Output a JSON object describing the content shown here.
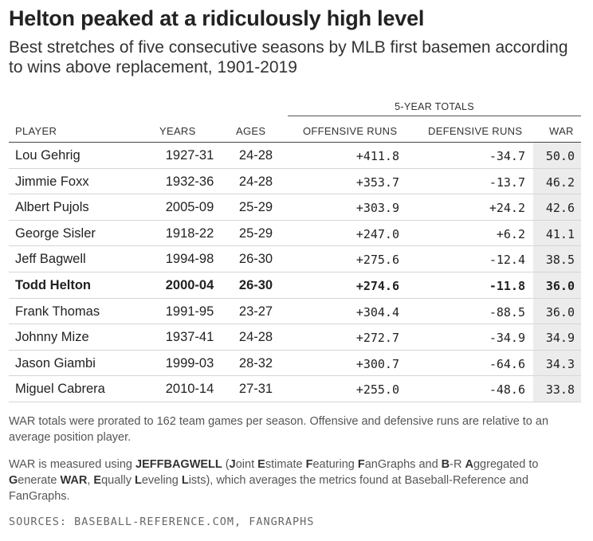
{
  "title": "Helton peaked at a ridiculously high level",
  "subtitle": "Best stretches of five consecutive seasons by MLB first basemen according to wins above replacement, 1901-2019",
  "table": {
    "group_header": "5-YEAR TOTALS",
    "columns": [
      "PLAYER",
      "YEARS",
      "AGES",
      "OFFENSIVE RUNS",
      "DEFENSIVE RUNS",
      "WAR"
    ],
    "rows": [
      {
        "player": "Lou Gehrig",
        "years": "1927-31",
        "ages": "24-28",
        "off": "+411.8",
        "def": "-34.7",
        "war": "50.0"
      },
      {
        "player": "Jimmie Foxx",
        "years": "1932-36",
        "ages": "24-28",
        "off": "+353.7",
        "def": "-13.7",
        "war": "46.2"
      },
      {
        "player": "Albert Pujols",
        "years": "2005-09",
        "ages": "25-29",
        "off": "+303.9",
        "def": "+24.2",
        "war": "42.6"
      },
      {
        "player": "George Sisler",
        "years": "1918-22",
        "ages": "25-29",
        "off": "+247.0",
        "def": "+6.2",
        "war": "41.1"
      },
      {
        "player": "Jeff Bagwell",
        "years": "1994-98",
        "ages": "26-30",
        "off": "+275.6",
        "def": "-12.4",
        "war": "38.5"
      },
      {
        "player": "Todd Helton",
        "years": "2000-04",
        "ages": "26-30",
        "off": "+274.6",
        "def": "-11.8",
        "war": "36.0"
      },
      {
        "player": "Frank Thomas",
        "years": "1991-95",
        "ages": "23-27",
        "off": "+304.4",
        "def": "-88.5",
        "war": "36.0"
      },
      {
        "player": "Johnny Mize",
        "years": "1937-41",
        "ages": "24-28",
        "off": "+272.7",
        "def": "-34.9",
        "war": "34.9"
      },
      {
        "player": "Jason Giambi",
        "years": "1999-03",
        "ages": "28-32",
        "off": "+300.7",
        "def": "-64.6",
        "war": "34.3"
      },
      {
        "player": "Miguel Cabrera",
        "years": "2010-14",
        "ages": "27-31",
        "off": "+255.0",
        "def": "-48.6",
        "war": "33.8"
      }
    ]
  },
  "notes": {
    "note1": "WAR totals were prorated to 162 team games per season. Offensive and defensive runs are relative to an average position player.",
    "note2": {
      "p1": "WAR is measured using ",
      "acronym": "JEFFBAGWELL",
      "p2": " (",
      "j": "J",
      "oint": "oint ",
      "e": "E",
      "stimate": "stimate ",
      "f": "F",
      "eaturing": "eaturing ",
      "fan": "F",
      "angraphs": "anGraphs and ",
      "b": "B",
      "dash": "-R ",
      "a": "A",
      "ggregated": "ggregated to ",
      "g": "G",
      "enerate": "enerate ",
      "war": "WAR",
      "comma": ", ",
      "eq": "E",
      "qually": "qually ",
      "l": "L",
      "eveling": "eveling ",
      "li": "L",
      "ists": "ists), which averages the metrics found at Baseball-Reference and FanGraphs."
    }
  },
  "sources": "SOURCES: BASEBALL-REFERENCE.COM, FANGRAPHS"
}
